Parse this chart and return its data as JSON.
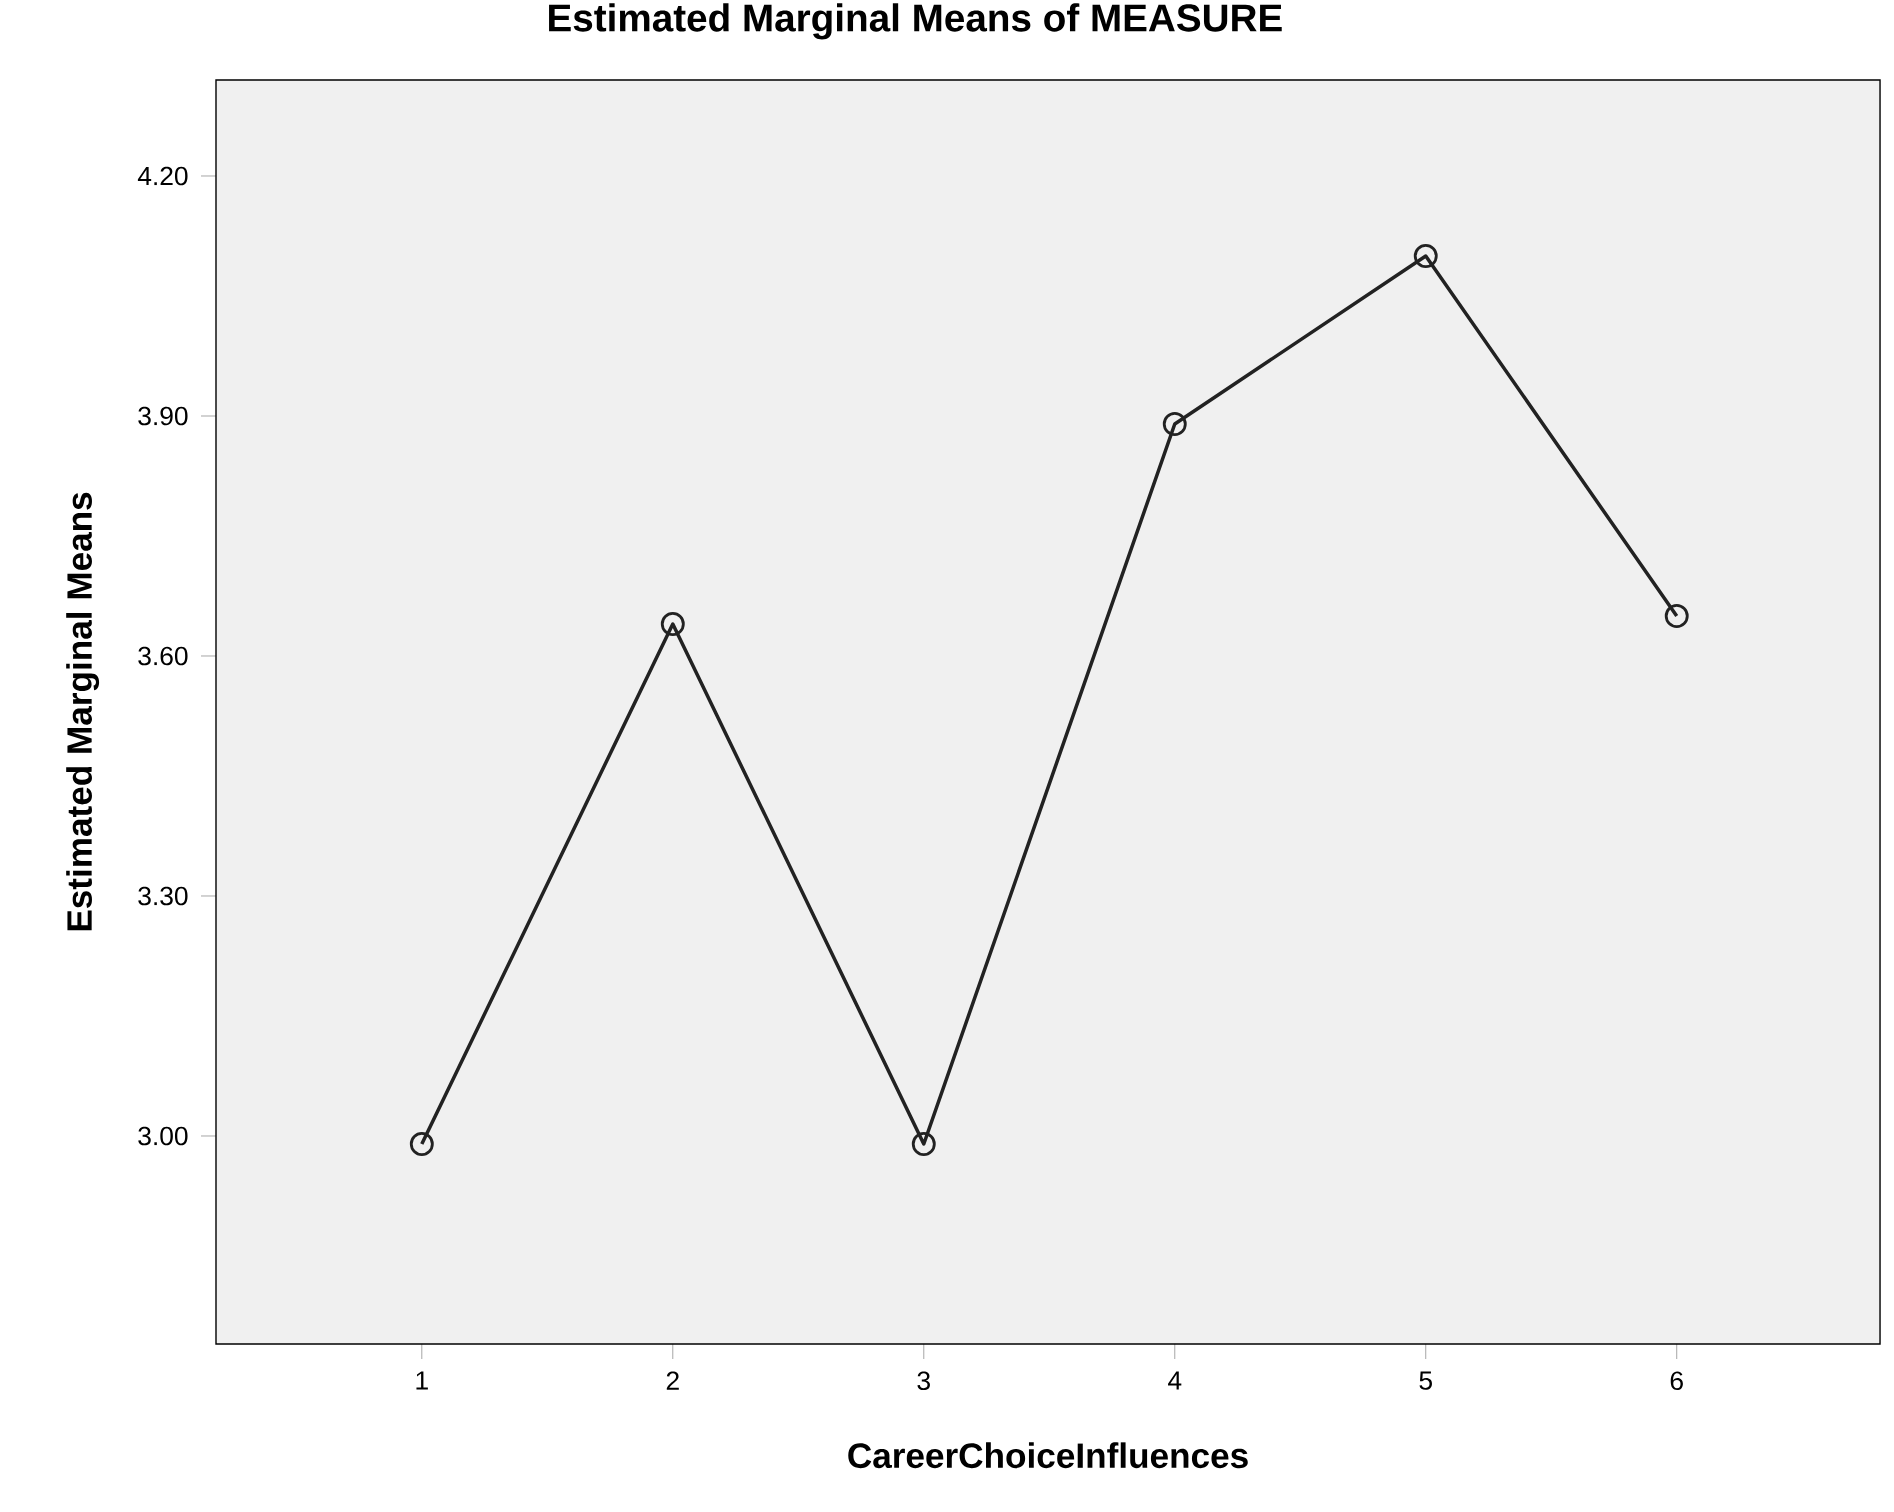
{
  "chart_data": {
    "type": "line",
    "title": "Estimated Marginal Means of MEASURE",
    "xlabel": "CareerChoiceInfluences",
    "ylabel": "Estimated Marginal Means",
    "categories": [
      "1",
      "2",
      "3",
      "4",
      "5",
      "6"
    ],
    "values": [
      2.99,
      3.64,
      2.99,
      3.89,
      4.1,
      3.65
    ],
    "color": "#222222",
    "marker": "circle",
    "line_style": "solid",
    "ylim": [
      2.74,
      4.32
    ],
    "yticks": [
      {
        "value": 3.0,
        "label": "3.00"
      },
      {
        "value": 3.3,
        "label": "3.30"
      },
      {
        "value": 3.6,
        "label": "3.60"
      },
      {
        "value": 3.9,
        "label": "3.90"
      },
      {
        "value": 4.2,
        "label": "4.20"
      }
    ]
  }
}
